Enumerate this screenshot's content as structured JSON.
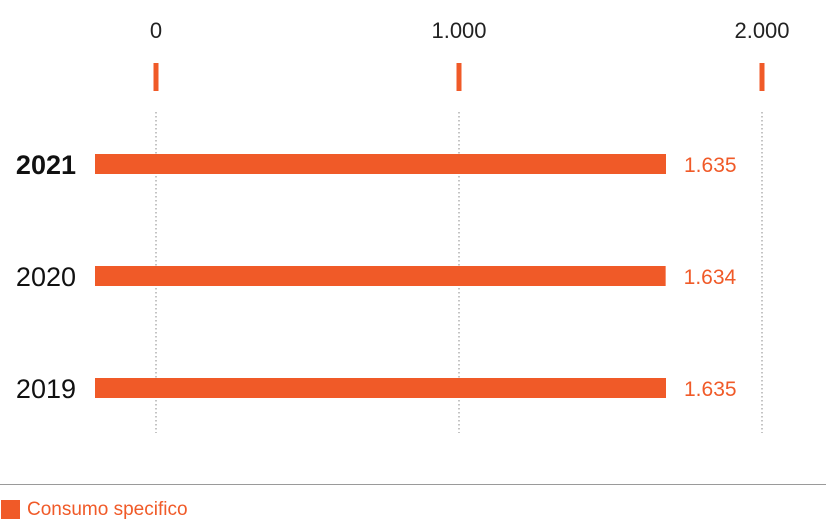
{
  "chart_data": {
    "type": "bar",
    "orientation": "horizontal",
    "categories": [
      "2021",
      "2020",
      "2019"
    ],
    "highlighted_category": "2021",
    "series": [
      {
        "name": "Consumo specifico",
        "values": [
          1635,
          1634,
          1635
        ]
      }
    ],
    "value_labels": [
      "1.635",
      "1.634",
      "1.635"
    ],
    "xlim": [
      0,
      2000
    ],
    "x_ticks": [
      0,
      1000,
      2000
    ],
    "x_tick_labels": [
      "0",
      "1.000",
      "2.000"
    ],
    "axis_position": "top",
    "grid": true,
    "legend_position": "bottom-left",
    "color": "#f05a28"
  },
  "legend": {
    "label": "Consumo specifico"
  }
}
